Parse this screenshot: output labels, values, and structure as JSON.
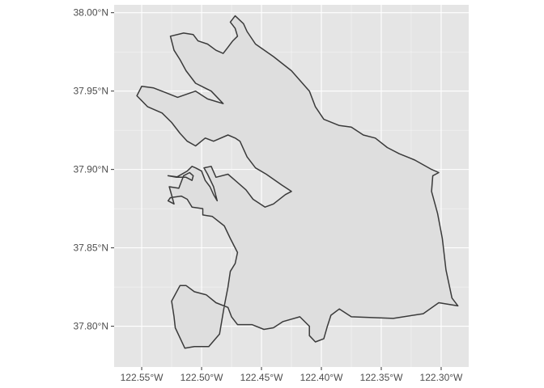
{
  "map": {
    "panel_background": "#e5e5e5",
    "grid_color": "#ffffff",
    "land_fill": "#dedede",
    "land_stroke": "#3a3a3a",
    "lon_range": [
      -122.573,
      -122.277
    ],
    "lat_range": [
      37.774,
      38.005
    ],
    "x_ticks": [
      {
        "value": -122.55,
        "label": "122.55°W"
      },
      {
        "value": -122.5,
        "label": "122.50°W"
      },
      {
        "value": -122.45,
        "label": "122.45°W"
      },
      {
        "value": -122.4,
        "label": "122.40°W"
      },
      {
        "value": -122.35,
        "label": "122.35°W"
      },
      {
        "value": -122.3,
        "label": "122.30°W"
      }
    ],
    "y_ticks": [
      {
        "value": 38.0,
        "label": "38.00°N"
      },
      {
        "value": 37.95,
        "label": "37.95°N"
      },
      {
        "value": 37.9,
        "label": "37.90°N"
      },
      {
        "value": 37.85,
        "label": "37.85°N"
      },
      {
        "value": 37.8,
        "label": "37.80°N"
      }
    ],
    "grid": "on",
    "boundary_lonlat": [
      [
        -122.526,
        37.985
      ],
      [
        -122.515,
        37.987
      ],
      [
        -122.507,
        37.986
      ],
      [
        -122.503,
        37.982
      ],
      [
        -122.495,
        37.98
      ],
      [
        -122.488,
        37.976
      ],
      [
        -122.482,
        37.974
      ],
      [
        -122.478,
        37.978
      ],
      [
        -122.474,
        37.982
      ],
      [
        -122.47,
        37.985
      ],
      [
        -122.472,
        37.99
      ],
      [
        -122.476,
        37.994
      ],
      [
        -122.472,
        37.998
      ],
      [
        -122.465,
        37.993
      ],
      [
        -122.462,
        37.988
      ],
      [
        -122.455,
        37.98
      ],
      [
        -122.44,
        37.972
      ],
      [
        -122.425,
        37.963
      ],
      [
        -122.41,
        37.95
      ],
      [
        -122.405,
        37.94
      ],
      [
        -122.398,
        37.932
      ],
      [
        -122.385,
        37.928
      ],
      [
        -122.375,
        37.927
      ],
      [
        -122.365,
        37.922
      ],
      [
        -122.355,
        37.92
      ],
      [
        -122.345,
        37.914
      ],
      [
        -122.335,
        37.91
      ],
      [
        -122.322,
        37.906
      ],
      [
        -122.308,
        37.9
      ],
      [
        -122.302,
        37.898
      ],
      [
        -122.307,
        37.896
      ],
      [
        -122.308,
        37.886
      ],
      [
        -122.303,
        37.872
      ],
      [
        -122.299,
        37.856
      ],
      [
        -122.296,
        37.836
      ],
      [
        -122.291,
        37.818
      ],
      [
        -122.286,
        37.813
      ],
      [
        -122.302,
        37.815
      ],
      [
        -122.315,
        37.808
      ],
      [
        -122.34,
        37.805
      ],
      [
        -122.375,
        37.806
      ],
      [
        -122.385,
        37.811
      ],
      [
        -122.392,
        37.807
      ],
      [
        -122.395,
        37.8
      ],
      [
        -122.398,
        37.792
      ],
      [
        -122.405,
        37.79
      ],
      [
        -122.41,
        37.794
      ],
      [
        -122.41,
        37.8
      ],
      [
        -122.418,
        37.806
      ],
      [
        -122.432,
        37.803
      ],
      [
        -122.44,
        37.799
      ],
      [
        -122.448,
        37.798
      ],
      [
        -122.458,
        37.801
      ],
      [
        -122.47,
        37.801
      ],
      [
        -122.475,
        37.806
      ],
      [
        -122.478,
        37.812
      ],
      [
        -122.488,
        37.815
      ],
      [
        -122.496,
        37.82
      ],
      [
        -122.506,
        37.822
      ],
      [
        -122.513,
        37.826
      ],
      [
        -122.518,
        37.826
      ],
      [
        -122.525,
        37.816
      ],
      [
        -122.523,
        37.806
      ],
      [
        -122.522,
        37.799
      ],
      [
        -122.514,
        37.786
      ],
      [
        -122.506,
        37.787
      ],
      [
        -122.494,
        37.787
      ],
      [
        -122.485,
        37.795
      ],
      [
        -122.481,
        37.813
      ],
      [
        -122.478,
        37.825
      ],
      [
        -122.476,
        37.835
      ],
      [
        -122.472,
        37.84
      ],
      [
        -122.47,
        37.847
      ],
      [
        -122.476,
        37.856
      ],
      [
        -122.481,
        37.864
      ],
      [
        -122.491,
        37.87
      ],
      [
        -122.499,
        37.871
      ],
      [
        -122.499,
        37.875
      ],
      [
        -122.508,
        37.876
      ],
      [
        -122.512,
        37.881
      ],
      [
        -122.517,
        37.883
      ],
      [
        -122.526,
        37.882
      ],
      [
        -122.528,
        37.88
      ],
      [
        -122.523,
        37.878
      ],
      [
        -122.527,
        37.889
      ],
      [
        -122.519,
        37.888
      ],
      [
        -122.515,
        37.896
      ],
      [
        -122.51,
        37.898
      ],
      [
        -122.507,
        37.896
      ],
      [
        -122.508,
        37.893
      ],
      [
        -122.513,
        37.895
      ],
      [
        -122.518,
        37.895
      ],
      [
        -122.528,
        37.896
      ],
      [
        -122.521,
        37.895
      ],
      [
        -122.512,
        37.899
      ],
      [
        -122.508,
        37.902
      ],
      [
        -122.505,
        37.901
      ],
      [
        -122.5,
        37.899
      ],
      [
        -122.497,
        37.893
      ],
      [
        -122.493,
        37.889
      ],
      [
        -122.49,
        37.884
      ],
      [
        -122.487,
        37.88
      ],
      [
        -122.49,
        37.889
      ],
      [
        -122.495,
        37.897
      ],
      [
        -122.498,
        37.901
      ],
      [
        -122.492,
        37.902
      ],
      [
        -122.488,
        37.895
      ],
      [
        -122.478,
        37.897
      ],
      [
        -122.472,
        37.893
      ],
      [
        -122.463,
        37.887
      ],
      [
        -122.457,
        37.881
      ],
      [
        -122.447,
        37.876
      ],
      [
        -122.44,
        37.878
      ],
      [
        -122.43,
        37.884
      ],
      [
        -122.425,
        37.886
      ],
      [
        -122.433,
        37.89
      ],
      [
        -122.446,
        37.897
      ],
      [
        -122.455,
        37.901
      ],
      [
        -122.462,
        37.908
      ],
      [
        -122.468,
        37.918
      ],
      [
        -122.472,
        37.92
      ],
      [
        -122.478,
        37.922
      ],
      [
        -122.49,
        37.918
      ],
      [
        -122.497,
        37.92
      ],
      [
        -122.505,
        37.915
      ],
      [
        -122.512,
        37.918
      ],
      [
        -122.518,
        37.923
      ],
      [
        -122.525,
        37.93
      ],
      [
        -122.533,
        37.936
      ],
      [
        -122.545,
        37.94
      ],
      [
        -122.554,
        37.947
      ],
      [
        -122.55,
        37.953
      ],
      [
        -122.54,
        37.952
      ],
      [
        -122.53,
        37.949
      ],
      [
        -122.52,
        37.946
      ],
      [
        -122.505,
        37.95
      ],
      [
        -122.495,
        37.945
      ],
      [
        -122.482,
        37.942
      ],
      [
        -122.492,
        37.95
      ],
      [
        -122.505,
        37.955
      ],
      [
        -122.513,
        37.963
      ],
      [
        -122.518,
        37.97
      ],
      [
        -122.523,
        37.976
      ],
      [
        -122.526,
        37.985
      ]
    ]
  }
}
